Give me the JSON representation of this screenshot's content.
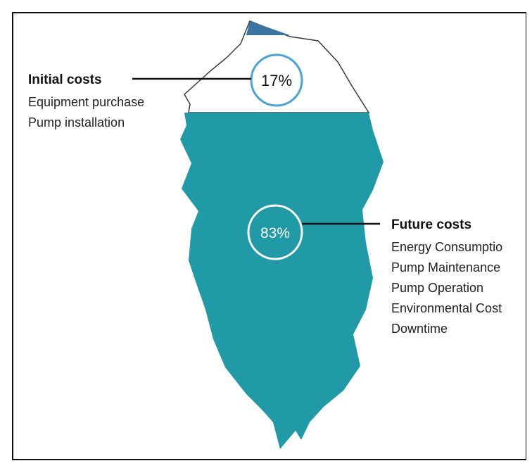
{
  "initial": {
    "title": "Initial costs",
    "percentage": "17%",
    "items": [
      "Equipment purchase",
      "Pump installation"
    ]
  },
  "future": {
    "title": "Future costs",
    "percentage": "83%",
    "items": [
      "Energy Consumptio",
      "Pump Maintenance",
      "Pump Operation",
      "Environmental Cost",
      "Downtime"
    ]
  },
  "colors": {
    "underwater": "#1f9aa6",
    "tip": "#3a74a0",
    "outline": "#3a3a3a",
    "circle_top": "#4aa3d6",
    "circle_bottom": "#ffffff",
    "border": "#111111"
  }
}
